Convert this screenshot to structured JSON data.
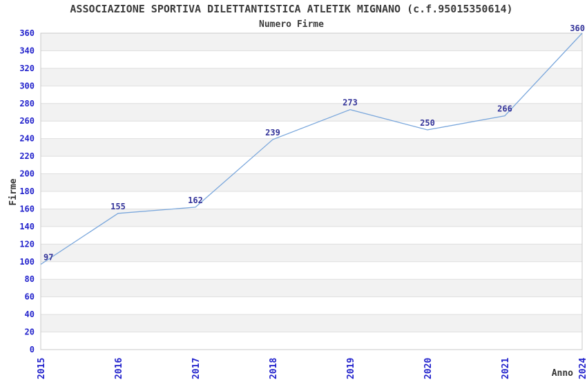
{
  "chart_data": {
    "type": "line",
    "title": "ASSOCIAZIONE SPORTIVA DILETTANTISTICA ATLETIK MIGNANO (c.f.95015350614)",
    "subtitle": "Numero Firme",
    "xlabel": "Anno",
    "ylabel": "Firme",
    "categories": [
      "2015",
      "2016",
      "2017",
      "2018",
      "2019",
      "2020",
      "2021",
      "2024"
    ],
    "series": [
      {
        "name": "Numero Firme",
        "values": [
          97,
          155,
          162,
          239,
          273,
          250,
          266,
          360
        ]
      }
    ],
    "ylim": [
      0,
      360
    ],
    "ytick_step": 20,
    "grid": true,
    "legend_position": "none",
    "colors": {
      "line": "#7AA7DC",
      "tick_label": "#2222CC",
      "data_label": "#333399",
      "band_light": "#FFFFFF",
      "band_dark": "#F2F2F2",
      "gridline": "#DEDEDE",
      "plot_border": "#C9C9C9",
      "title_text": "#3A3A3A",
      "axis_title_text": "#333333",
      "background": "#FFFFFF"
    }
  }
}
